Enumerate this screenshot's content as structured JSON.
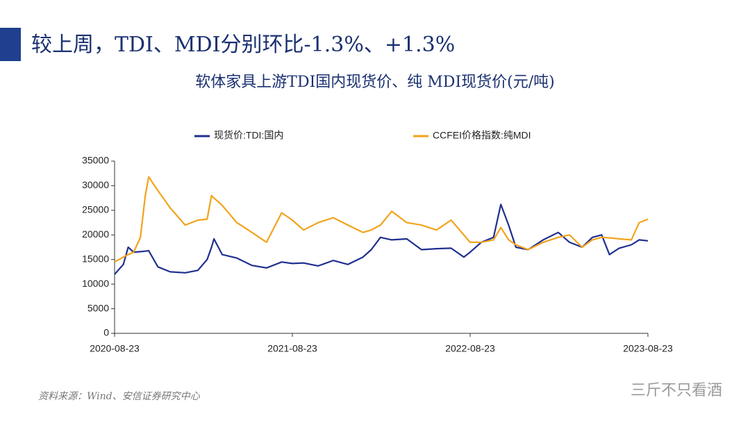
{
  "header": {
    "title": "较上周，TDI、MDI分别环比-1.3%、+1.3%"
  },
  "chart_data": {
    "type": "line",
    "title": "软体家具上游TDI国内现货价、纯 MDI现货价(元/吨)",
    "x": [
      "2020-08-23",
      "2020-09-10",
      "2020-09-20",
      "2020-10-01",
      "2020-10-15",
      "2020-10-25",
      "2020-11-01",
      "2020-11-20",
      "2020-12-15",
      "2021-01-15",
      "2021-02-10",
      "2021-03-01",
      "2021-03-10",
      "2021-03-15",
      "2021-04-01",
      "2021-05-01",
      "2021-06-01",
      "2021-07-01",
      "2021-08-01",
      "2021-08-23",
      "2021-09-15",
      "2021-10-15",
      "2021-11-15",
      "2021-12-15",
      "2022-01-15",
      "2022-02-01",
      "2022-02-20",
      "2022-03-15",
      "2022-04-15",
      "2022-05-15",
      "2022-06-15",
      "2022-07-15",
      "2022-08-10",
      "2022-08-23",
      "2022-09-15",
      "2022-10-10",
      "2022-10-25",
      "2022-11-10",
      "2022-11-25",
      "2022-12-20",
      "2023-01-20",
      "2023-02-20",
      "2023-03-15",
      "2023-04-10",
      "2023-05-01",
      "2023-05-20",
      "2023-06-05",
      "2023-06-25",
      "2023-07-20",
      "2023-08-05",
      "2023-08-23"
    ],
    "series": [
      {
        "name": "现货价:TDI:国内",
        "color": "#1f2f8f",
        "values": [
          12000,
          14000,
          17500,
          16500,
          16600,
          16700,
          16800,
          13500,
          12500,
          12300,
          12800,
          15000,
          17500,
          19200,
          16000,
          15300,
          13800,
          13300,
          14500,
          14200,
          14300,
          13700,
          14800,
          14000,
          15500,
          17000,
          19500,
          19000,
          19200,
          17000,
          17200,
          17300,
          15500,
          16500,
          18500,
          19500,
          26200,
          22000,
          17500,
          17000,
          19000,
          20500,
          18500,
          17500,
          19500,
          20000,
          16000,
          17300,
          18000,
          19000,
          18800
        ]
      },
      {
        "name": "CCFEI价格指数:纯MDI",
        "color": "#f2a31b",
        "values": [
          14500,
          15500,
          16000,
          16500,
          19500,
          28000,
          31800,
          29000,
          25500,
          22000,
          23000,
          23200,
          28000,
          27500,
          26000,
          22500,
          20500,
          18500,
          24500,
          23000,
          21000,
          22500,
          23500,
          22000,
          20500,
          21000,
          22000,
          24800,
          22500,
          22000,
          21000,
          23000,
          20000,
          18500,
          18500,
          19000,
          21500,
          19000,
          18000,
          17000,
          18500,
          19500,
          20000,
          17500,
          19000,
          19500,
          19400,
          19200,
          19000,
          22500,
          23200
        ]
      }
    ],
    "xlim": [
      "2020-08-23",
      "2023-08-23"
    ],
    "xticks": [
      "2020-08-23",
      "2021-08-23",
      "2022-08-23",
      "2023-08-23"
    ],
    "ylim": [
      0,
      35000
    ],
    "yticks": [
      0,
      5000,
      10000,
      15000,
      20000,
      25000,
      30000,
      35000
    ]
  },
  "footer": {
    "source": "资料来源：Wind、安信证券研究中心",
    "watermark": "三斤不只看酒"
  }
}
